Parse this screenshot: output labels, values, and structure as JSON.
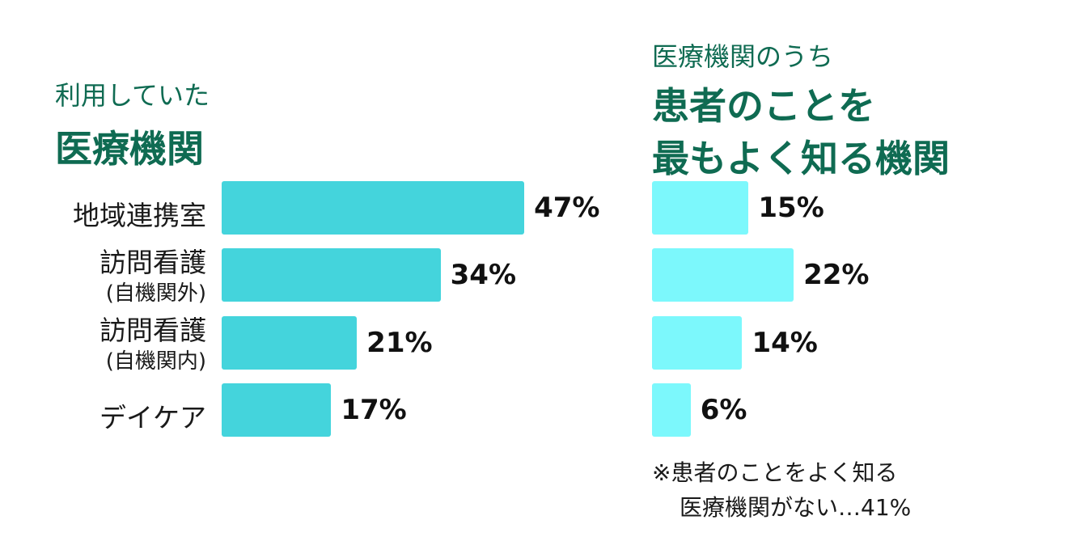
{
  "chart_data": [
    {
      "type": "bar",
      "orientation": "horizontal",
      "title_line1": "利用していた",
      "title_line2": "医療機関",
      "categories": [
        {
          "label": "地域連携室",
          "sub": ""
        },
        {
          "label": "訪問看護",
          "sub": "(自機関外)"
        },
        {
          "label": "訪問看護",
          "sub": "(自機関内)"
        },
        {
          "label": "デイケア",
          "sub": ""
        }
      ],
      "values": [
        47,
        34,
        21,
        17
      ],
      "value_labels": [
        "47%",
        "34%",
        "21%",
        "17%"
      ],
      "color": "#44d4dc"
    },
    {
      "type": "bar",
      "orientation": "horizontal",
      "title_line1": "医療機関のうち",
      "title_line2": "患者のことを",
      "title_line3": "最もよく知る機関",
      "values": [
        15,
        22,
        14,
        6
      ],
      "value_labels": [
        "15%",
        "22%",
        "14%",
        "6%"
      ],
      "color": "#7cf8fc",
      "note_line1": "※患者のことをよく知る",
      "note_line2": "医療機関がない…41%"
    }
  ]
}
